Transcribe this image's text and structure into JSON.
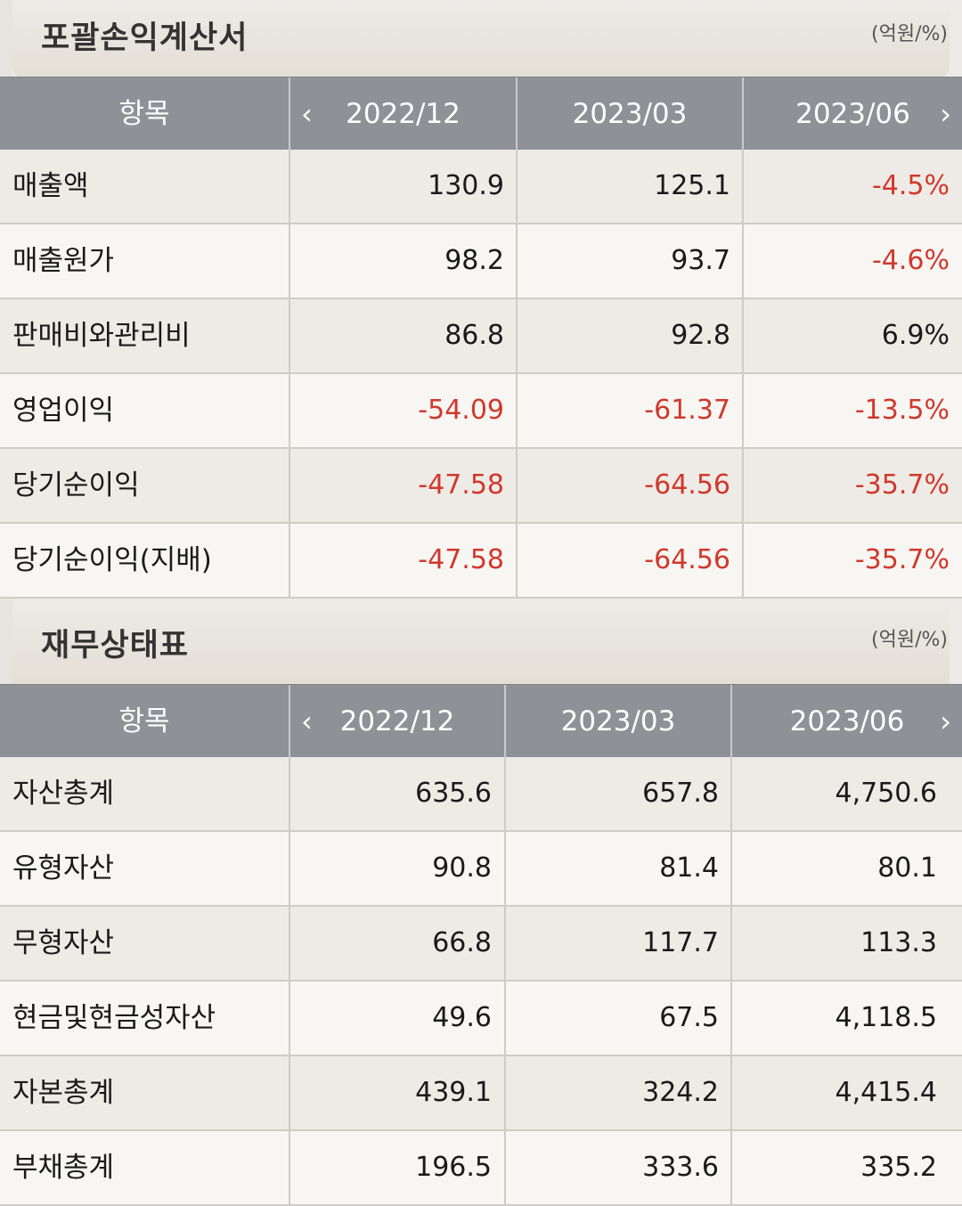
{
  "income_statement": {
    "title": "포괄손익계산서",
    "unit": "(억원/%)",
    "header": {
      "item_label": "항목",
      "prev_icon": "chevron-left-icon",
      "next_icon": "chevron-right-icon",
      "periods": [
        "2022/12",
        "2023/03",
        "2023/06"
      ]
    },
    "rows": [
      {
        "label": "매출액",
        "values": [
          "130.9",
          "125.1",
          "-4.5%"
        ]
      },
      {
        "label": "매출원가",
        "values": [
          "98.2",
          "93.7",
          "-4.6%"
        ]
      },
      {
        "label": "판매비와관리비",
        "values": [
          "86.8",
          "92.8",
          "6.9%"
        ]
      },
      {
        "label": "영업이익",
        "values": [
          "-54.09",
          "-61.37",
          "-13.5%"
        ]
      },
      {
        "label": "당기순이익",
        "values": [
          "-47.58",
          "-64.56",
          "-35.7%"
        ]
      },
      {
        "label": "당기순이익(지배)",
        "values": [
          "-47.58",
          "-64.56",
          "-35.7%"
        ]
      }
    ]
  },
  "balance_sheet": {
    "title": "재무상태표",
    "unit": "(억원/%)",
    "header": {
      "item_label": "항목",
      "prev_icon": "chevron-left-icon",
      "next_icon": "chevron-right-icon",
      "periods": [
        "2022/12",
        "2023/03",
        "2023/06"
      ]
    },
    "rows": [
      {
        "label": "자산총계",
        "values": [
          "635.6",
          "657.8",
          "4,750.6"
        ]
      },
      {
        "label": "유형자산",
        "values": [
          "90.8",
          "81.4",
          "80.1"
        ]
      },
      {
        "label": "무형자산",
        "values": [
          "66.8",
          "117.7",
          "113.3"
        ]
      },
      {
        "label": "현금및현금성자산",
        "values": [
          "49.6",
          "67.5",
          "4,118.5"
        ]
      },
      {
        "label": "자본총계",
        "values": [
          "439.1",
          "324.2",
          "4,415.4"
        ]
      },
      {
        "label": "부채총계",
        "values": [
          "196.5",
          "333.6",
          "335.2"
        ]
      }
    ]
  },
  "colors": {
    "negative": "#d1382c",
    "header_bg": "#8e9196",
    "header_text": "#ffffff"
  }
}
